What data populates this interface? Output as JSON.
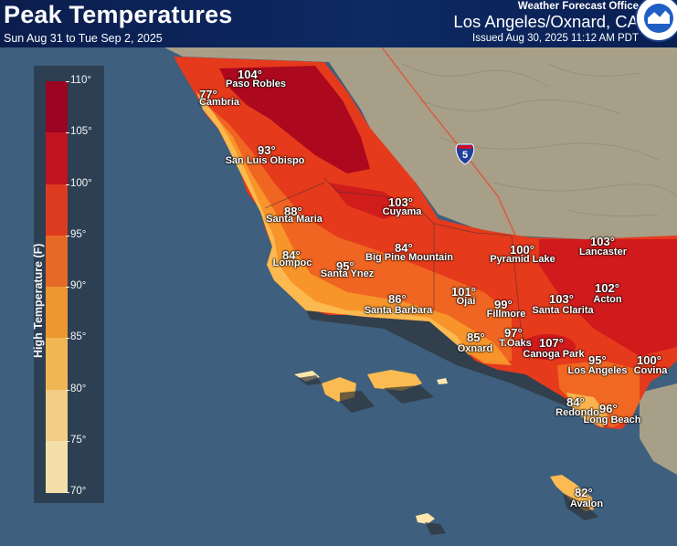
{
  "header": {
    "title": "Peak Temperatures",
    "subtitle": "Sun Aug 31 to Tue Sep 2, 2025",
    "office": "Weather Forecast Office",
    "location": "Los Angeles/Oxnard, CA",
    "issued": "Issued Aug 30, 2025 11:12 AM PDT"
  },
  "legend": {
    "title": "High Temperature (F)",
    "ticks": [
      "110°",
      "105°",
      "100°",
      "95°",
      "90°",
      "85°",
      "80°",
      "75°",
      "70°"
    ],
    "colors": [
      "#a1001e",
      "#c8101c",
      "#e63a1c",
      "#f06a22",
      "#f79a2c",
      "#fbbb52",
      "#fdd286",
      "#fee6ad",
      "#fff6cf"
    ]
  },
  "highway": {
    "label": "5",
    "icon": "interstate-shield-icon"
  },
  "colors": {
    "ocean": "#3e5f7d",
    "land_out": "#a79f88",
    "header": "#0d2a63"
  },
  "cities": [
    {
      "name": "Paso Robles",
      "temp": "104°"
    },
    {
      "name": "Cambria",
      "temp": "77°"
    },
    {
      "name": "San Luis Obispo",
      "temp": "93°"
    },
    {
      "name": "Santa Maria",
      "temp": "88°"
    },
    {
      "name": "Cuyama",
      "temp": "103°"
    },
    {
      "name": "Lompoc",
      "temp": "84°"
    },
    {
      "name": "Santa Ynez",
      "temp": "95°"
    },
    {
      "name": "Big Pine Mountain",
      "temp": "84°"
    },
    {
      "name": "Santa Barbara",
      "temp": "86°"
    },
    {
      "name": "Ojai",
      "temp": "101°"
    },
    {
      "name": "Fillmore",
      "temp": "99°"
    },
    {
      "name": "Pyramid Lake",
      "temp": "100°"
    },
    {
      "name": "Lancaster",
      "temp": "103°"
    },
    {
      "name": "Acton",
      "temp": "102°"
    },
    {
      "name": "Santa Clarita",
      "temp": "103°"
    },
    {
      "name": "Oxnard",
      "temp": "85°"
    },
    {
      "name": "T.Oaks",
      "temp": "97°"
    },
    {
      "name": "Canoga Park",
      "temp": "107°"
    },
    {
      "name": "Los Angeles",
      "temp": "95°"
    },
    {
      "name": "Covina",
      "temp": "100°"
    },
    {
      "name": "Redondo",
      "temp": "84°"
    },
    {
      "name": "Long Beach",
      "temp": "96°"
    },
    {
      "name": "Avalon",
      "temp": "82°"
    }
  ]
}
